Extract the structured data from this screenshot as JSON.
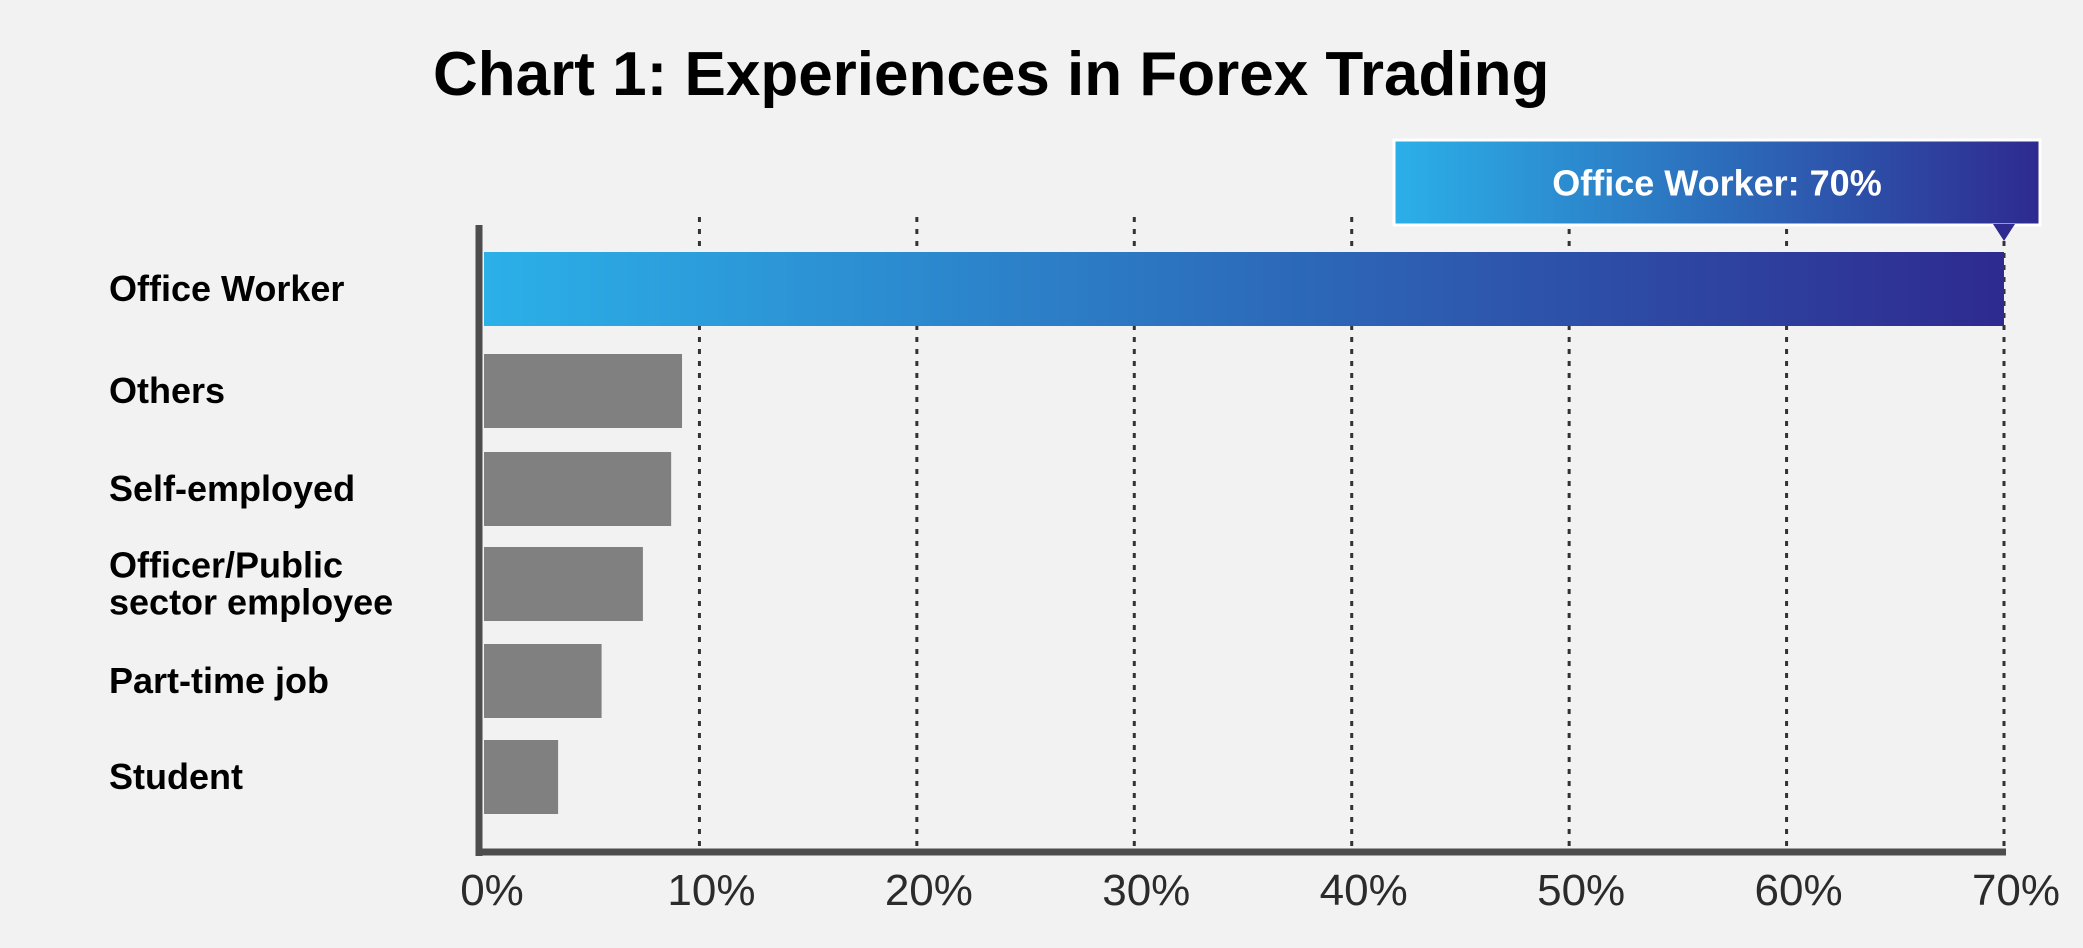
{
  "chart_data": {
    "type": "bar",
    "orientation": "horizontal",
    "title": "Chart 1: Experiences in Forex Trading",
    "categories": [
      "Office Worker",
      "Others",
      "Self-employed",
      "Officer/Public sector employee",
      "Part-time job",
      "Student"
    ],
    "category_lines": [
      [
        "Office Worker"
      ],
      [
        "Others"
      ],
      [
        "Self-employed"
      ],
      [
        "Officer/Public",
        "sector employee"
      ],
      [
        "Part-time job"
      ],
      [
        "Student"
      ]
    ],
    "values": [
      70,
      9.2,
      8.7,
      7.4,
      5.5,
      3.5
    ],
    "xlim": [
      0,
      70
    ],
    "x_ticks": [
      0,
      10,
      20,
      30,
      40,
      50,
      60,
      70
    ],
    "x_tick_labels": [
      "0%",
      "10%",
      "20%",
      "30%",
      "40%",
      "50%",
      "60%",
      "70%"
    ],
    "grid": "vertical dotted",
    "highlight": {
      "category": "Office Worker",
      "label": "Office Worker: 70%",
      "value": 70
    }
  },
  "colors": {
    "background": "#f2f2f2",
    "bar_default": "#808080",
    "highlight_start": "#2bb0e8",
    "highlight_end": "#2e2a8f",
    "axis": "#4d4d4d",
    "grid": "#333333"
  }
}
